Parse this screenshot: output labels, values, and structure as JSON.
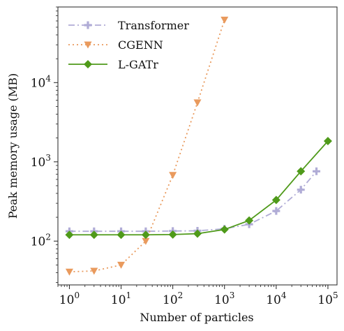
{
  "chart_data": {
    "type": "line",
    "xscale": "log",
    "yscale": "log",
    "xlabel": "Number of particles",
    "ylabel": "Peak memory usage (MB)",
    "xlim": [
      0.6,
      150000
    ],
    "ylim": [
      28,
      90000
    ],
    "legend_position": "top-left",
    "x_ticks": [
      {
        "base": "10",
        "exp": "0",
        "value": 1
      },
      {
        "base": "10",
        "exp": "1",
        "value": 10
      },
      {
        "base": "10",
        "exp": "2",
        "value": 100
      },
      {
        "base": "10",
        "exp": "3",
        "value": 1000
      },
      {
        "base": "10",
        "exp": "4",
        "value": 10000
      },
      {
        "base": "10",
        "exp": "5",
        "value": 100000
      }
    ],
    "y_ticks": [
      {
        "base": "10",
        "exp": "2",
        "value": 100
      },
      {
        "base": "10",
        "exp": "3",
        "value": 1000
      },
      {
        "base": "10",
        "exp": "4",
        "value": 10000
      }
    ],
    "series": [
      {
        "name": "Transformer",
        "color": "#b0acd6",
        "dash": "dashdot",
        "marker": "plus",
        "x": [
          1,
          3,
          10,
          30,
          100,
          300,
          1000,
          3000,
          10000,
          30000,
          60000
        ],
        "y": [
          133,
          133,
          133,
          133,
          134,
          135,
          143,
          163,
          240,
          445,
          760
        ]
      },
      {
        "name": "CGENN",
        "color": "#e99a5d",
        "dash": "dotted",
        "marker": "triangle-down",
        "x": [
          1,
          3,
          10,
          30,
          100,
          300,
          1000
        ],
        "y": [
          41,
          42,
          50,
          100,
          680,
          5600,
          62000
        ]
      },
      {
        "name": "L-GATr",
        "color": "#4f9a1a",
        "dash": "solid",
        "marker": "diamond",
        "x": [
          1,
          3,
          10,
          30,
          100,
          300,
          1000,
          3000,
          10000,
          30000,
          100000
        ],
        "y": [
          120,
          120,
          120,
          120,
          121,
          124,
          140,
          182,
          330,
          760,
          1830
        ]
      }
    ]
  }
}
